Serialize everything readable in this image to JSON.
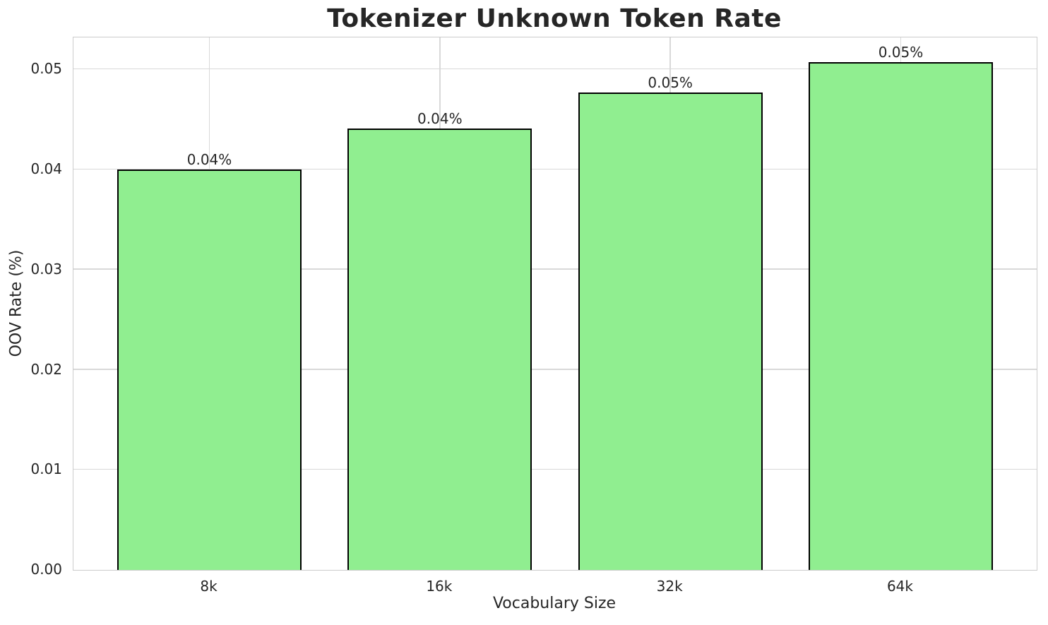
{
  "chart_data": {
    "type": "bar",
    "title": "Tokenizer Unknown Token Rate",
    "xlabel": "Vocabulary Size",
    "ylabel": "OOV Rate (%)",
    "categories": [
      "8k",
      "16k",
      "32k",
      "64k"
    ],
    "values": [
      0.04,
      0.0441,
      0.0477,
      0.0507
    ],
    "bar_labels": [
      "0.04%",
      "0.04%",
      "0.05%",
      "0.05%"
    ],
    "ylim": [
      0,
      0.0532
    ],
    "xlim": [
      -0.59,
      3.59
    ],
    "bar_width": 0.8,
    "yticks": [
      0,
      0.01,
      0.02,
      0.03,
      0.04,
      0.05
    ],
    "ytick_labels": [
      "0.00",
      "0.01",
      "0.02",
      "0.03",
      "0.04",
      "0.05"
    ],
    "grid": true,
    "legend": "none",
    "bar_color": "#90EE90",
    "bar_edge_color": "#000000",
    "grid_color": "#d9d9d9",
    "spine_color": "#cccccc",
    "text_color": "#262626",
    "background_color": "#ffffff"
  }
}
